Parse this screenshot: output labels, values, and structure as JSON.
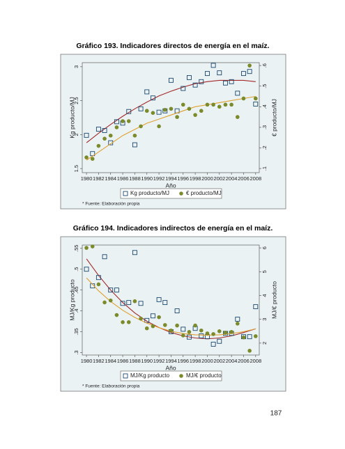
{
  "page_number": "187",
  "chart_data": [
    {
      "type": "scatter",
      "title": "Gráfico 193.  Indicadores directos de energía en el maíz.",
      "xlabel": "Año",
      "ylabel": "Kg producto/MJ",
      "y2label": "€ producto/MJ",
      "note": "* Fuente: Elaboración propia",
      "x": [
        1980,
        1981,
        1982,
        1983,
        1984,
        1985,
        1986,
        1987,
        1988,
        1989,
        1990,
        1991,
        1992,
        1993,
        1994,
        1995,
        1996,
        1997,
        1998,
        1999,
        2000,
        2001,
        2002,
        2003,
        2004,
        2005,
        2006,
        2007,
        2008
      ],
      "xlim": [
        1979.3,
        2008.6
      ],
      "xticks": [
        1980,
        1982,
        1984,
        1986,
        1988,
        1990,
        1992,
        1994,
        1996,
        1998,
        2000,
        2002,
        2004,
        2006,
        2008
      ],
      "ylim": [
        1.44,
        3.06
      ],
      "yticks": [
        1.5,
        2,
        2.5,
        3
      ],
      "y2lim": [
        0.08,
        0.614
      ],
      "y2ticks": [
        {
          "value": 0.1,
          "label": ".1"
        },
        {
          "value": 0.2,
          "label": ".2"
        },
        {
          "value": 0.3,
          "label": ".3"
        },
        {
          "value": 0.4,
          "label": ".4"
        },
        {
          "value": 0.5,
          "label": ".5"
        },
        {
          "value": 0.6,
          "label": ".6"
        }
      ],
      "series": [
        {
          "name": "Kg producto/MJ",
          "color": "#1a476f",
          "marker": "square",
          "values": [
            1.99,
            1.72,
            2.08,
            2.06,
            1.88,
            2.19,
            2.17,
            2.34,
            1.85,
            2.38,
            2.63,
            2.54,
            2.33,
            2.35,
            2.8,
            2.35,
            2.68,
            2.84,
            2.73,
            2.78,
            2.9,
            3.02,
            2.91,
            2.76,
            2.78,
            2.61,
            2.9,
            2.93,
            2.45
          ],
          "trend": {
            "color": "#a3282a",
            "x": [
              1980,
              1982,
              1984,
              1986,
              1988,
              1990,
              1992,
              1994,
              1996,
              1998,
              2000,
              2002,
              2004,
              2006,
              2008
            ],
            "values": [
              1.88,
              2.02,
              2.15,
              2.27,
              2.38,
              2.48,
              2.57,
              2.64,
              2.7,
              2.75,
              2.78,
              2.8,
              2.8,
              2.8,
              2.78
            ]
          }
        },
        {
          "name": "€ producto/MJ",
          "color": "#7b8a2a",
          "marker": "circle",
          "axis": "y2",
          "values": [
            0.154,
            0.147,
            0.21,
            0.245,
            0.26,
            0.3,
            0.33,
            0.33,
            0.26,
            0.305,
            0.38,
            0.37,
            0.305,
            0.385,
            0.39,
            0.35,
            0.41,
            0.39,
            0.36,
            0.38,
            0.41,
            0.41,
            0.4,
            0.41,
            0.41,
            0.35,
            0.44,
            0.6,
            0.44
          ],
          "trend": {
            "color": "#e0a030",
            "x": [
              1980,
              1982,
              1984,
              1986,
              1988,
              1990,
              1992,
              1994,
              1996,
              1998,
              2000,
              2002,
              2004,
              2006,
              2008
            ],
            "values": [
              0.14,
              0.18,
              0.22,
              0.26,
              0.29,
              0.32,
              0.34,
              0.36,
              0.38,
              0.4,
              0.41,
              0.42,
              0.43,
              0.44,
              0.45
            ]
          }
        }
      ]
    },
    {
      "type": "scatter",
      "title": "Gráfico 194. Indicadores indirectos de energía en el maíz.",
      "xlabel": "Año",
      "ylabel": "MJ/Kg producto",
      "y2label": "MJ/€ producto",
      "note": "* Fuente: Elaboración propia",
      "x": [
        1980,
        1981,
        1982,
        1983,
        1984,
        1985,
        1986,
        1987,
        1988,
        1989,
        1990,
        1991,
        1992,
        1993,
        1994,
        1995,
        1996,
        1997,
        1998,
        1999,
        2000,
        2001,
        2002,
        2003,
        2004,
        2005,
        2006,
        2007,
        2008
      ],
      "xlim": [
        1979.3,
        2008.6
      ],
      "xticks": [
        1980,
        1982,
        1984,
        1986,
        1988,
        1990,
        1992,
        1994,
        1996,
        1998,
        2000,
        2002,
        2004,
        2006,
        2008
      ],
      "ylim": [
        0.294,
        0.558
      ],
      "yticks": [
        {
          "value": 0.3,
          "label": ".3"
        },
        {
          "value": 0.35,
          "label": ".35"
        },
        {
          "value": 0.4,
          "label": ".4"
        },
        {
          "value": 0.45,
          "label": ".45"
        },
        {
          "value": 0.5,
          "label": ".5"
        },
        {
          "value": 0.55,
          "label": ".55"
        }
      ],
      "y2lim": [
        1.5,
        6.12
      ],
      "y2ticks": [
        2,
        3,
        4,
        5,
        6
      ],
      "series": [
        {
          "name": "MJ/Kg producto",
          "color": "#1a476f",
          "marker": "square",
          "values": [
            0.5,
            0.46,
            0.48,
            0.53,
            0.45,
            0.45,
            0.418,
            0.42,
            0.54,
            0.418,
            0.377,
            0.388,
            0.427,
            0.42,
            0.35,
            0.4,
            0.356,
            0.337,
            0.358,
            0.34,
            0.338,
            0.32,
            0.327,
            0.346,
            0.346,
            0.38,
            0.338,
            0.338,
            0.41
          ],
          "trend": {
            "color": "#a3282a",
            "x": [
              1980,
              1982,
              1984,
              1986,
              1988,
              1990,
              1992,
              1994,
              1996,
              1998,
              2000,
              2002,
              2004,
              2006,
              2008
            ],
            "values": [
              0.525,
              0.485,
              0.45,
              0.42,
              0.395,
              0.375,
              0.36,
              0.348,
              0.34,
              0.335,
              0.333,
              0.335,
              0.34,
              0.348,
              0.357
            ]
          }
        },
        {
          "name": "MJ/€ producto",
          "color": "#7b8a2a",
          "marker": "circle",
          "axis": "y2",
          "values": [
            6.0,
            6.06,
            4.47,
            3.71,
            3.79,
            3.18,
            2.88,
            2.88,
            3.76,
            3.03,
            2.62,
            2.71,
            3.09,
            2.76,
            2.53,
            2.74,
            2.32,
            2.47,
            2.74,
            2.53,
            2.41,
            2.38,
            2.5,
            2.44,
            2.47,
            2.82,
            2.24,
            1.68,
            2.29
          ],
          "trend": {
            "color": "#e0a030",
            "x": [
              1980,
              1982,
              1984,
              1986,
              1988,
              1990,
              1992,
              1994,
              1996,
              1998,
              2000,
              2002,
              2004,
              2006,
              2008
            ],
            "values": [
              4.74,
              4.2,
              3.75,
              3.38,
              3.08,
              2.84,
              2.65,
              2.5,
              2.4,
              2.35,
              2.33,
              2.35,
              2.4,
              2.48,
              2.6
            ]
          }
        }
      ]
    }
  ]
}
